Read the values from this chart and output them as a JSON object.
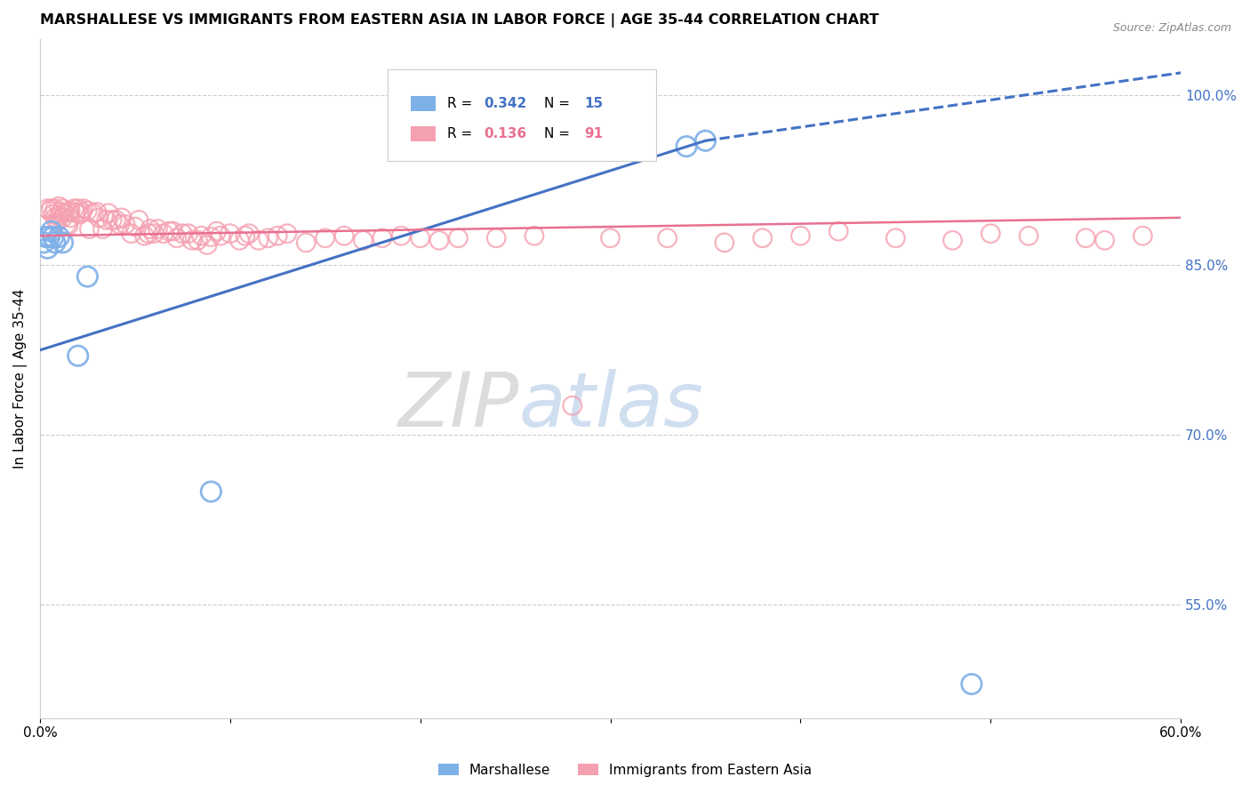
{
  "title": "MARSHALLESE VS IMMIGRANTS FROM EASTERN ASIA IN LABOR FORCE | AGE 35-44 CORRELATION CHART",
  "source_text": "Source: ZipAtlas.com",
  "ylabel": "In Labor Force | Age 35-44",
  "legend_label_blue": "Marshallese",
  "legend_label_pink": "Immigrants from Eastern Asia",
  "R_blue": 0.342,
  "N_blue": 15,
  "R_pink": 0.136,
  "N_pink": 91,
  "xlim": [
    0.0,
    0.6
  ],
  "ylim": [
    0.45,
    1.05
  ],
  "x_tick_positions": [
    0.0,
    0.1,
    0.2,
    0.3,
    0.4,
    0.5,
    0.6
  ],
  "x_tick_labels": [
    "0.0%",
    "",
    "",
    "",
    "",
    "",
    "60.0%"
  ],
  "y_ticks_right": [
    0.55,
    0.7,
    0.85,
    1.0
  ],
  "y_tick_labels_right": [
    "55.0%",
    "70.0%",
    "85.0%",
    "100.0%"
  ],
  "color_blue": "#7EB0E8",
  "color_pink": "#F5A0B0",
  "color_blue_line": "#4472C4",
  "color_pink_line": "#E87090",
  "watermark_color": "#D0DFF0",
  "blue_x": [
    0.002,
    0.003,
    0.004,
    0.005,
    0.006,
    0.007,
    0.008,
    0.01,
    0.012,
    0.02,
    0.025,
    0.09,
    0.34,
    0.35,
    0.49
  ],
  "blue_y": [
    0.87,
    0.875,
    0.865,
    0.875,
    0.88,
    0.875,
    0.87,
    0.875,
    0.87,
    0.77,
    0.84,
    0.65,
    0.955,
    0.96,
    0.48
  ],
  "pink_x": [
    0.004,
    0.005,
    0.006,
    0.007,
    0.008,
    0.008,
    0.009,
    0.01,
    0.01,
    0.011,
    0.012,
    0.012,
    0.013,
    0.014,
    0.015,
    0.015,
    0.016,
    0.016,
    0.018,
    0.019,
    0.02,
    0.021,
    0.022,
    0.023,
    0.025,
    0.026,
    0.028,
    0.03,
    0.031,
    0.033,
    0.035,
    0.036,
    0.038,
    0.04,
    0.042,
    0.043,
    0.045,
    0.048,
    0.05,
    0.052,
    0.055,
    0.057,
    0.058,
    0.06,
    0.062,
    0.065,
    0.068,
    0.07,
    0.072,
    0.075,
    0.078,
    0.08,
    0.083,
    0.085,
    0.088,
    0.09,
    0.093,
    0.095,
    0.1,
    0.105,
    0.108,
    0.11,
    0.115,
    0.12,
    0.125,
    0.13,
    0.14,
    0.15,
    0.16,
    0.17,
    0.18,
    0.19,
    0.2,
    0.21,
    0.22,
    0.24,
    0.26,
    0.28,
    0.3,
    0.33,
    0.36,
    0.38,
    0.4,
    0.42,
    0.45,
    0.48,
    0.5,
    0.52,
    0.55,
    0.56,
    0.58
  ],
  "pink_y": [
    0.9,
    0.898,
    0.9,
    0.895,
    0.9,
    0.892,
    0.888,
    0.902,
    0.893,
    0.897,
    0.892,
    0.9,
    0.896,
    0.886,
    0.897,
    0.885,
    0.898,
    0.892,
    0.9,
    0.896,
    0.9,
    0.895,
    0.897,
    0.9,
    0.898,
    0.882,
    0.896,
    0.897,
    0.892,
    0.882,
    0.89,
    0.896,
    0.89,
    0.89,
    0.886,
    0.892,
    0.886,
    0.878,
    0.884,
    0.89,
    0.876,
    0.878,
    0.882,
    0.878,
    0.882,
    0.878,
    0.88,
    0.88,
    0.874,
    0.878,
    0.878,
    0.872,
    0.872,
    0.876,
    0.868,
    0.875,
    0.88,
    0.876,
    0.878,
    0.872,
    0.876,
    0.878,
    0.872,
    0.874,
    0.876,
    0.878,
    0.87,
    0.874,
    0.876,
    0.872,
    0.874,
    0.876,
    0.874,
    0.872,
    0.874,
    0.874,
    0.876,
    0.726,
    0.874,
    0.874,
    0.87,
    0.874,
    0.876,
    0.88,
    0.874,
    0.872,
    0.878,
    0.876,
    0.874,
    0.872,
    0.876
  ]
}
